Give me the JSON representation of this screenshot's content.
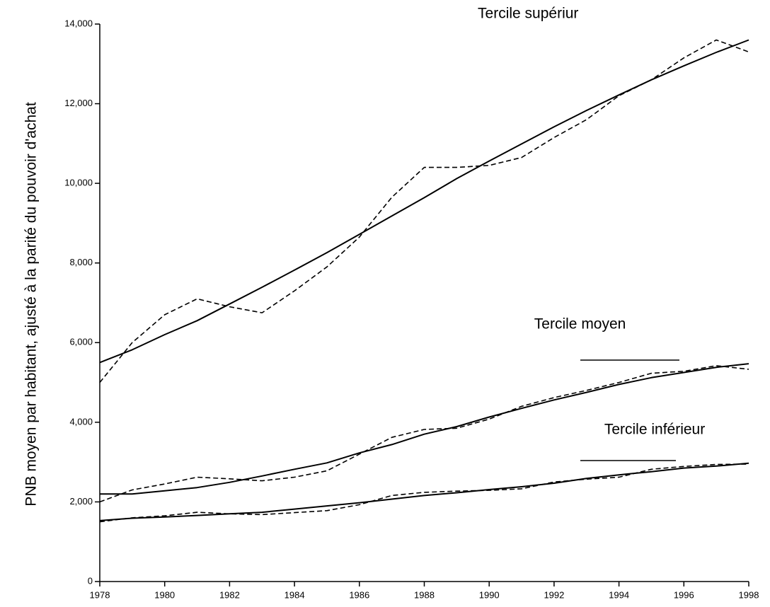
{
  "chart_data": {
    "type": "line",
    "y_label": "PNB moyen par habitant, ajusté à la parité du pouvoir d'achat",
    "annotations": [
      {
        "text": "Tercile supériur",
        "x": 1991.2,
        "y": 14250
      },
      {
        "text": "Tercile moyen",
        "x": 1992.8,
        "y": 6450
      },
      {
        "text": "Tercile inférieur",
        "x": 1995.1,
        "y": 3800
      }
    ],
    "x": [
      1978,
      1979,
      1980,
      1981,
      1982,
      1983,
      1984,
      1985,
      1986,
      1987,
      1988,
      1989,
      1990,
      1991,
      1992,
      1993,
      1994,
      1995,
      1996,
      1997,
      1998
    ],
    "series": [
      {
        "color": "#000000",
        "line_style": "solid",
        "values": [
          5500,
          5820,
          6200,
          6550,
          6970,
          7390,
          7820,
          8260,
          8720,
          9180,
          9640,
          10120,
          10560,
          10990,
          11420,
          11830,
          12220,
          12600,
          12950,
          13290,
          13600
        ]
      },
      {
        "color": "#000000",
        "line_style": "dashed",
        "values": [
          5000,
          6000,
          6700,
          7100,
          6900,
          6750,
          7300,
          7900,
          8650,
          9650,
          10400,
          10400,
          10450,
          10650,
          11150,
          11600,
          12200,
          12600,
          13150,
          13600,
          13300
        ]
      },
      {
        "color": "#000000",
        "line_style": "solid",
        "values": [
          2200,
          2200,
          2280,
          2360,
          2490,
          2650,
          2820,
          2980,
          3230,
          3440,
          3700,
          3890,
          4130,
          4350,
          4560,
          4750,
          4950,
          5120,
          5250,
          5380,
          5470
        ]
      },
      {
        "color": "#000000",
        "line_style": "dashed",
        "values": [
          2000,
          2300,
          2450,
          2620,
          2580,
          2530,
          2620,
          2780,
          3200,
          3620,
          3820,
          3850,
          4080,
          4400,
          4620,
          4800,
          5000,
          5230,
          5280,
          5420,
          5330
        ]
      },
      {
        "color": "#000000",
        "line_style": "solid",
        "values": [
          1530,
          1590,
          1620,
          1660,
          1700,
          1740,
          1820,
          1900,
          1980,
          2070,
          2160,
          2230,
          2310,
          2380,
          2470,
          2590,
          2680,
          2760,
          2850,
          2900,
          2970
        ]
      },
      {
        "color": "#000000",
        "line_style": "dashed",
        "values": [
          1500,
          1600,
          1650,
          1740,
          1700,
          1680,
          1730,
          1780,
          1930,
          2160,
          2240,
          2270,
          2290,
          2330,
          2500,
          2570,
          2620,
          2820,
          2890,
          2940,
          2950
        ]
      }
    ],
    "xlim": [
      1978,
      1998
    ],
    "xticks": [
      1978,
      1980,
      1982,
      1984,
      1986,
      1988,
      1990,
      1992,
      1994,
      1996,
      1998
    ],
    "ylim": [
      0,
      14000
    ],
    "yticks": [
      0,
      {
        "value": 2000,
        "label": "2,000"
      },
      {
        "value": 4000,
        "label": "4,000"
      },
      {
        "value": 6000,
        "label": "6,000"
      },
      {
        "value": 8000,
        "label": "8,000"
      },
      {
        "value": 10000,
        "label": "10,000"
      },
      {
        "value": 12000,
        "label": "12,000"
      },
      {
        "value": 14000,
        "label": "14,000"
      }
    ]
  }
}
